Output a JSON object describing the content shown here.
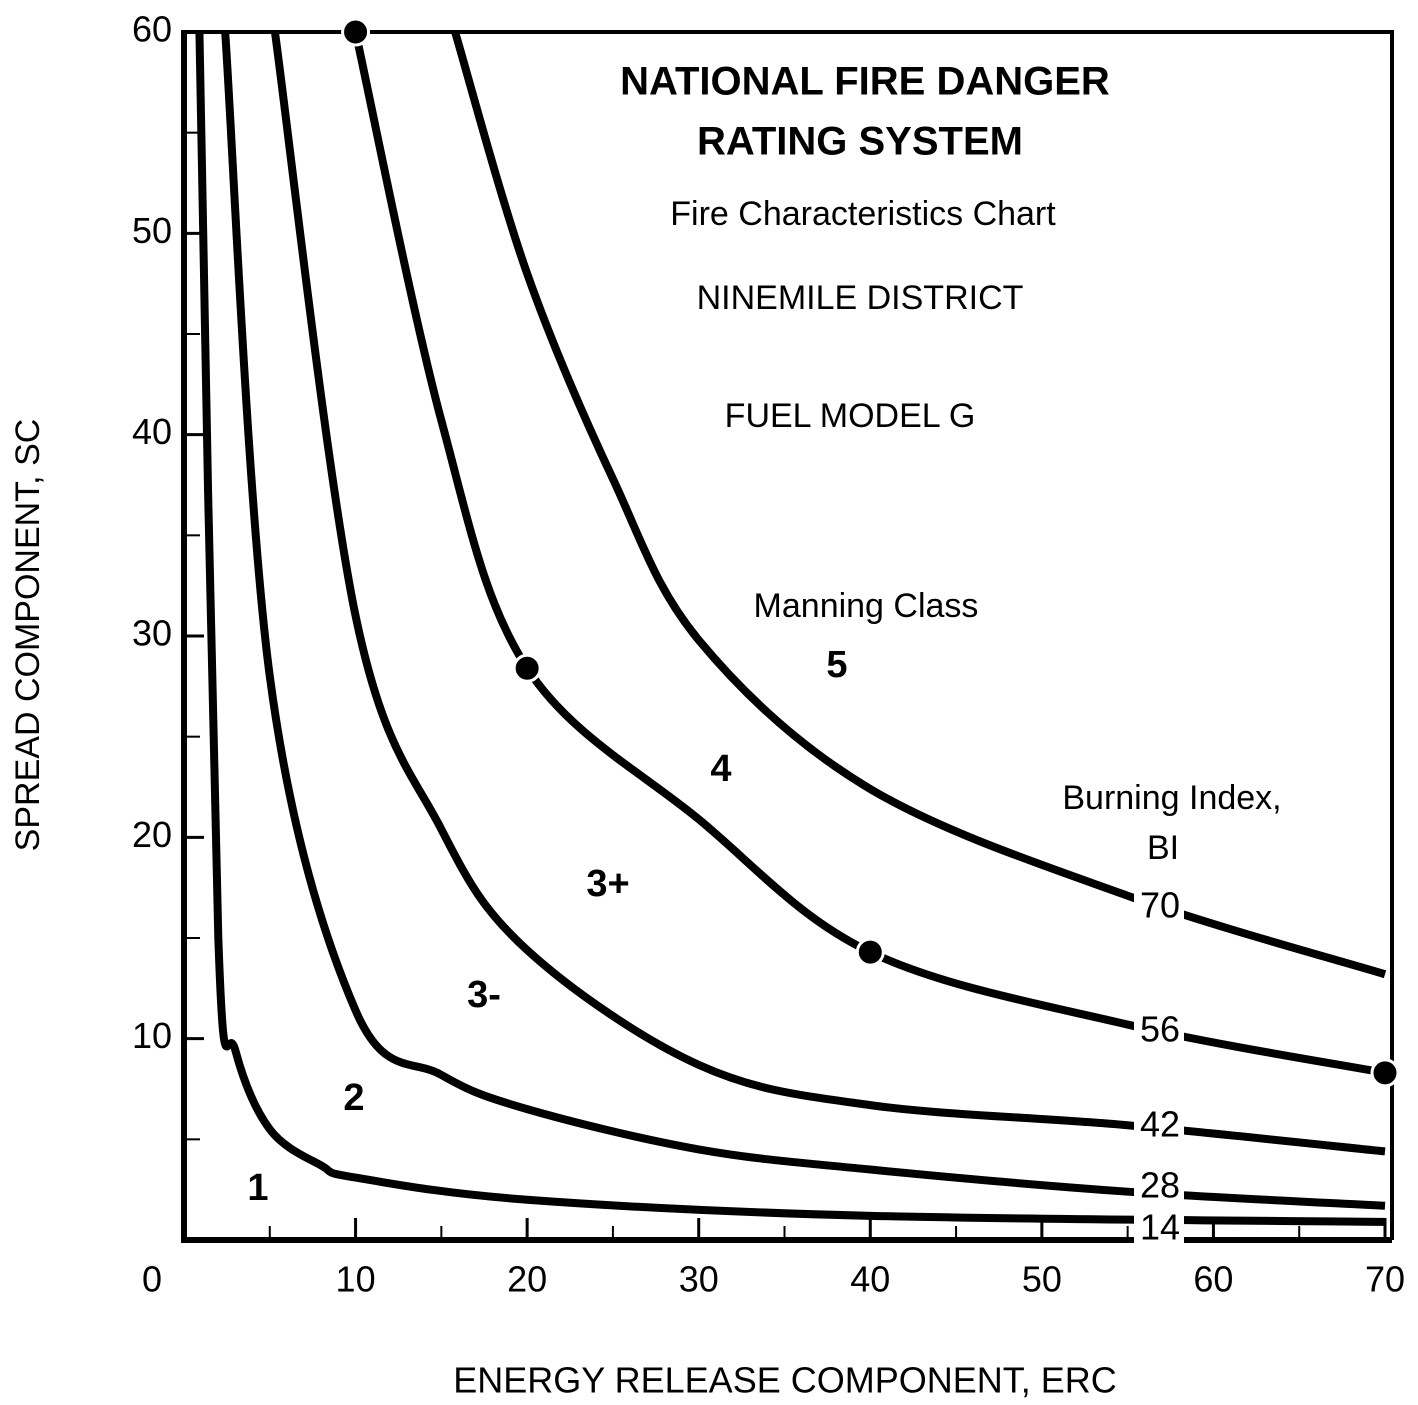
{
  "chart_data": {
    "type": "line",
    "title": [
      "NATIONAL FIRE DANGER",
      "RATING SYSTEM"
    ],
    "subtitle": "Fire Characteristics Chart",
    "district": "NINEMILE DISTRICT",
    "fuel_model": "FUEL MODEL G",
    "class_title": "Manning Class",
    "classes": [
      "1",
      "2",
      "3-",
      "3+",
      "4",
      "5"
    ],
    "legend_title": [
      "Burning Index,",
      "BI"
    ],
    "x_label": "ENERGY RELEASE COMPONENT, ERC",
    "y_label": "SPREAD COMPONENT, SC",
    "xlim": [
      0,
      70
    ],
    "ylim": [
      0,
      60
    ],
    "xticks": [
      0,
      10,
      20,
      30,
      40,
      50,
      60,
      70
    ],
    "yticks": [
      10,
      20,
      30,
      40,
      50,
      60
    ],
    "xminor": [
      5,
      15,
      25,
      35,
      45,
      55,
      65
    ],
    "yminor": [
      5,
      15,
      25,
      35,
      45,
      55
    ],
    "series": [
      {
        "name": "70",
        "color": "#000000",
        "x": [
          15.8,
          20,
          25,
          30,
          40,
          55,
          70
        ],
        "values": [
          60,
          48,
          37.8,
          29.8,
          22.4,
          17.1,
          13.2
        ]
      },
      {
        "name": "56",
        "color": "#000000",
        "x": [
          10,
          15,
          20,
          30,
          40,
          55,
          70
        ],
        "values": [
          60,
          40.7,
          28.4,
          20.9,
          14.3,
          10.7,
          8.3
        ]
      },
      {
        "name": "42",
        "color": "#000000",
        "x": [
          5.3,
          10,
          15,
          20,
          30,
          40,
          55,
          70
        ],
        "values": [
          60,
          31,
          20.4,
          14.4,
          8.7,
          6.7,
          5.7,
          4.4
        ]
      },
      {
        "name": "28",
        "color": "#000000",
        "x": [
          2.4,
          5,
          10,
          15,
          20,
          30,
          40,
          55,
          70
        ],
        "values": [
          60,
          28,
          11.4,
          8.2,
          6.5,
          4.5,
          3.5,
          2.4,
          1.7
        ]
      },
      {
        "name": "14",
        "color": "#000000",
        "x": [
          0.9,
          2,
          3,
          5,
          8,
          10,
          20,
          40,
          70
        ],
        "values": [
          60,
          15,
          9.4,
          5.5,
          3.7,
          3.1,
          2.0,
          1.2,
          0.9
        ]
      }
    ],
    "points": {
      "x": [
        10,
        20,
        40,
        70
      ],
      "y": [
        60,
        28.4,
        14.3,
        8.3
      ]
    }
  }
}
